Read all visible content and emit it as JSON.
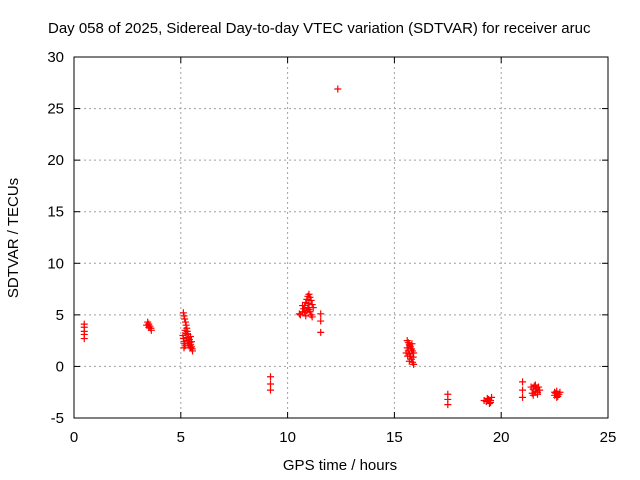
{
  "chart_data": {
    "type": "scatter",
    "title": "Day 058 of 2025, Sidereal Day-to-day VTEC variation (SDTVAR) for receiver aruc",
    "xlabel": "GPS time / hours",
    "ylabel": "SDTVAR / TECUs",
    "xlim": [
      0,
      25
    ],
    "ylim": [
      -5,
      30
    ],
    "x_ticks": [
      0,
      5,
      10,
      15,
      20,
      25
    ],
    "y_ticks": [
      -5,
      0,
      5,
      10,
      15,
      20,
      25,
      30
    ],
    "grid": true,
    "marker": "+",
    "marker_color": "#ff0000",
    "series": [
      {
        "name": "SDTVAR",
        "points": [
          [
            0.48,
            4.1
          ],
          [
            0.48,
            3.8
          ],
          [
            0.48,
            3.4
          ],
          [
            0.48,
            3.1
          ],
          [
            0.48,
            2.7
          ],
          [
            3.45,
            4.3
          ],
          [
            3.5,
            4.1
          ],
          [
            3.55,
            3.9
          ],
          [
            3.6,
            3.7
          ],
          [
            3.62,
            3.5
          ],
          [
            3.5,
            3.8
          ],
          [
            3.4,
            4.0
          ],
          [
            5.12,
            5.2
          ],
          [
            5.15,
            4.9
          ],
          [
            5.18,
            4.6
          ],
          [
            5.22,
            4.3
          ],
          [
            5.25,
            4.0
          ],
          [
            5.28,
            3.7
          ],
          [
            5.3,
            3.4
          ],
          [
            5.33,
            3.1
          ],
          [
            5.36,
            2.8
          ],
          [
            5.4,
            2.6
          ],
          [
            5.43,
            2.3
          ],
          [
            5.46,
            2.1
          ],
          [
            5.5,
            1.9
          ],
          [
            5.53,
            1.7
          ],
          [
            5.55,
            1.5
          ],
          [
            5.1,
            3.0
          ],
          [
            5.12,
            2.7
          ],
          [
            5.15,
            2.4
          ],
          [
            5.18,
            2.2
          ],
          [
            5.2,
            2.0
          ],
          [
            5.25,
            2.8
          ],
          [
            5.3,
            2.5
          ],
          [
            5.35,
            2.2
          ],
          [
            5.4,
            2.0
          ],
          [
            5.45,
            1.8
          ],
          [
            5.5,
            2.4
          ],
          [
            5.2,
            3.5
          ],
          [
            5.25,
            3.2
          ],
          [
            5.15,
            1.8
          ],
          [
            5.45,
            2.9
          ],
          [
            9.2,
            -1.0
          ],
          [
            9.2,
            -1.7
          ],
          [
            9.2,
            -2.3
          ],
          [
            10.55,
            5.1
          ],
          [
            10.6,
            5.0
          ],
          [
            10.7,
            5.3
          ],
          [
            10.75,
            5.6
          ],
          [
            10.8,
            5.9
          ],
          [
            10.85,
            6.2
          ],
          [
            10.9,
            6.5
          ],
          [
            10.95,
            6.8
          ],
          [
            11.0,
            7.0
          ],
          [
            11.05,
            6.7
          ],
          [
            11.1,
            6.4
          ],
          [
            11.15,
            6.0
          ],
          [
            11.2,
            5.7
          ],
          [
            10.8,
            5.2
          ],
          [
            10.85,
            4.9
          ],
          [
            10.9,
            5.4
          ],
          [
            10.95,
            5.7
          ],
          [
            11.0,
            6.1
          ],
          [
            11.05,
            5.3
          ],
          [
            11.1,
            5.0
          ],
          [
            11.15,
            4.8
          ],
          [
            10.7,
            5.9
          ],
          [
            11.0,
            5.5
          ],
          [
            11.55,
            5.1
          ],
          [
            11.55,
            4.4
          ],
          [
            11.55,
            3.3
          ],
          [
            12.35,
            26.9
          ],
          [
            15.6,
            2.5
          ],
          [
            15.65,
            2.3
          ],
          [
            15.7,
            2.1
          ],
          [
            15.75,
            1.9
          ],
          [
            15.8,
            1.7
          ],
          [
            15.85,
            1.5
          ],
          [
            15.9,
            1.3
          ],
          [
            15.6,
            1.8
          ],
          [
            15.65,
            1.5
          ],
          [
            15.7,
            1.2
          ],
          [
            15.75,
            1.0
          ],
          [
            15.8,
            0.7
          ],
          [
            15.85,
            0.4
          ],
          [
            15.9,
            0.2
          ],
          [
            15.62,
            1.0
          ],
          [
            15.72,
            2.0
          ],
          [
            15.82,
            2.2
          ],
          [
            15.88,
            0.9
          ],
          [
            15.7,
            0.5
          ],
          [
            15.55,
            1.3
          ],
          [
            17.5,
            -2.7
          ],
          [
            17.5,
            -3.2
          ],
          [
            17.5,
            -3.7
          ],
          [
            19.2,
            -3.3
          ],
          [
            19.3,
            -3.4
          ],
          [
            19.4,
            -3.2
          ],
          [
            19.5,
            -3.5
          ],
          [
            19.55,
            -3.0
          ],
          [
            19.45,
            -3.6
          ],
          [
            19.35,
            -3.1
          ],
          [
            19.5,
            -3.3
          ],
          [
            21.0,
            -1.5
          ],
          [
            21.0,
            -2.3
          ],
          [
            21.0,
            -3.0
          ],
          [
            21.4,
            -2.0
          ],
          [
            21.45,
            -2.6
          ],
          [
            21.5,
            -2.2
          ],
          [
            21.55,
            -1.9
          ],
          [
            21.6,
            -2.4
          ],
          [
            21.65,
            -2.1
          ],
          [
            21.7,
            -2.7
          ],
          [
            21.75,
            -2.0
          ],
          [
            21.8,
            -2.3
          ],
          [
            21.5,
            -2.8
          ],
          [
            21.6,
            -1.8
          ],
          [
            21.7,
            -2.5
          ],
          [
            22.5,
            -2.8
          ],
          [
            22.55,
            -2.6
          ],
          [
            22.6,
            -2.4
          ],
          [
            22.65,
            -2.9
          ],
          [
            22.7,
            -2.7
          ],
          [
            22.75,
            -2.5
          ],
          [
            22.6,
            -3.0
          ],
          [
            22.5,
            -2.5
          ]
        ]
      }
    ]
  }
}
